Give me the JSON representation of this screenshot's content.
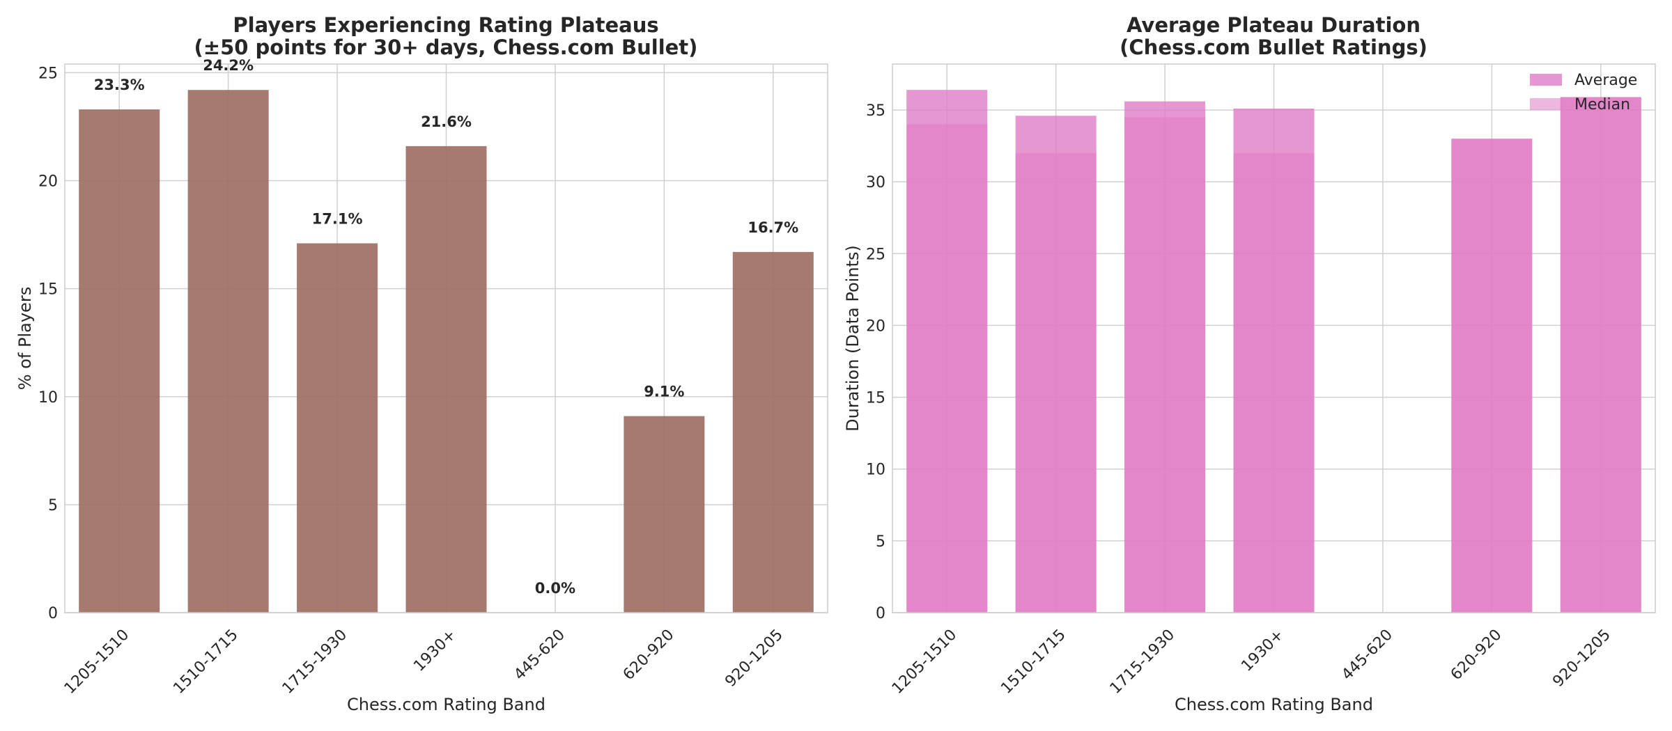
{
  "chart_data": [
    {
      "type": "bar",
      "title": "Players Experiencing Rating Plateaus\n(±50 points for 30+ days, Chess.com Bullet)",
      "xlabel": "Chess.com Rating Band",
      "ylabel": "% of Players",
      "categories": [
        "1205-1510",
        "1510-1715",
        "1715-1930",
        "1930+",
        "445-620",
        "620-920",
        "920-1205"
      ],
      "values": [
        23.3,
        24.2,
        17.1,
        21.6,
        0.0,
        9.1,
        16.7
      ],
      "data_labels": [
        "23.3%",
        "24.2%",
        "17.1%",
        "21.6%",
        "0.0%",
        "9.1%",
        "16.7%"
      ],
      "ylim": [
        0,
        25.4
      ],
      "yticks": [
        0,
        5,
        10,
        15,
        20,
        25
      ],
      "grid": true,
      "color": "#9c6b5f"
    },
    {
      "type": "bar",
      "title": "Average Plateau Duration\n(Chess.com Bullet Ratings)",
      "xlabel": "Chess.com Rating Band",
      "ylabel": "Duration (Data Points)",
      "categories": [
        "1205-1510",
        "1510-1715",
        "1715-1930",
        "1930+",
        "445-620",
        "620-920",
        "920-1205"
      ],
      "series": [
        {
          "name": "Average",
          "values": [
            36.4,
            34.6,
            35.6,
            35.1,
            0,
            33.0,
            35.9
          ]
        },
        {
          "name": "Median",
          "values": [
            34.0,
            32.0,
            34.5,
            32.0,
            0,
            33.0,
            35.9
          ]
        }
      ],
      "ylim": [
        0,
        38.2
      ],
      "yticks": [
        0,
        5,
        10,
        15,
        20,
        25,
        30,
        35
      ],
      "grid": true,
      "legend": "top-right",
      "colors": {
        "Average": "#e07cc4",
        "Median": "#e07cc4"
      }
    }
  ]
}
